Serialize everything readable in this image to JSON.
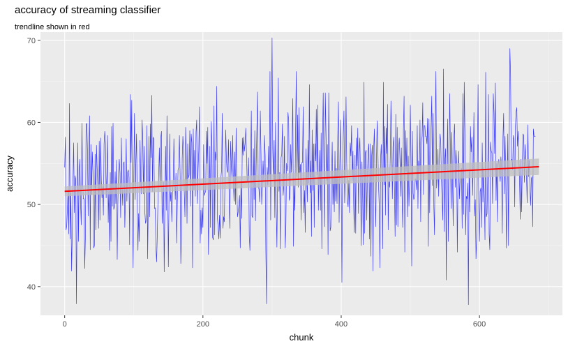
{
  "chart_data": {
    "type": "line",
    "title": "accuracy of streaming classifier",
    "subtitle": "trendline shown in red",
    "xlabel": "chunk",
    "ylabel": "accuracy",
    "xlim": [
      -35,
      720
    ],
    "ylim": [
      36.5,
      71
    ],
    "x_ticks": [
      0,
      200,
      400,
      600
    ],
    "y_ticks": [
      40,
      50,
      60,
      70
    ],
    "grid": true,
    "background": "#ebebeb",
    "series": [
      {
        "style": "line",
        "color": "#3b3bf0",
        "x_start": 0,
        "x_step": 1,
        "values": [
          54.5,
          58.2,
          46.9,
          47.4,
          49.6,
          51.8,
          46.4,
          62.3,
          45.8,
          51.4,
          41.9,
          46.2,
          52.8,
          57.5,
          49.0,
          53.5,
          53.0,
          37.9,
          49.6,
          57.5,
          45.5,
          54.0,
          55.5,
          50.1,
          47.5,
          59.9,
          52.9,
          50.7,
          50.7,
          42.2,
          46.0,
          59.7,
          59.9,
          56.6,
          48.6,
          56.9,
          60.8,
          44.5,
          57.3,
          51.2,
          56.4,
          54.0,
          44.7,
          45.0,
          56.1,
          46.9,
          57.2,
          54.5,
          52.0,
          47.1,
          57.7,
          48.1,
          58.1,
          53.0,
          50.8,
          52.2,
          48.7,
          57.4,
          58.9,
          57.5,
          50.8,
          53.5,
          58.4,
          47.8,
          52.0,
          44.4,
          53.9,
          45.5,
          59.5,
          49.8,
          59.9,
          49.4,
          49.7,
          54.0,
          50.1,
          55.4,
          43.3,
          50.3,
          54.0,
          55.5,
          53.8,
          48.4,
          58.1,
          52.2,
          49.9,
          55.0,
          55.2,
          47.2,
          51.1,
          58.0,
          50.4,
          53.9,
          54.2,
          53.3,
          45.1,
          63.4,
          55.1,
          62.7,
          49.5,
          42.3,
          53.5,
          61.1,
          50.6,
          55.2,
          58.6,
          50.2,
          44.4,
          48.9,
          45.5,
          57.8,
          52.8,
          51.3,
          60.3,
          58.0,
          51.3,
          57.1,
          49.0,
          47.7,
          48.1,
          59.6,
          43.4,
          50.3,
          58.3,
          48.5,
          59.8,
          55.7,
          63.3,
          51.6,
          58.2,
          58.0,
          49.5,
          49.6,
          44.8,
          43.0,
          46.3,
          50.6,
          53.6,
          56.9,
          52.1,
          58.1,
          58.9,
          47.7,
          50.1,
          52.7,
          41.8,
          50.3,
          57.1,
          49.3,
          60.8,
          53.2,
          42.4,
          51.2,
          58.6,
          50.4,
          51.5,
          47.9,
          51.5,
          52.6,
          58.0,
          53.6,
          50.6,
          53.8,
          45.3,
          50.2,
          54.2,
          54.5,
          58.4,
          53.6,
          42.8,
          46.2,
          55.6,
          58.3,
          56.5,
          51.6,
          48.5,
          59.4,
          55.9,
          47.7,
          57.4,
          53.2,
          53.6,
          59.0,
          49.8,
          58.6,
          57.5,
          42.3,
          59.2,
          51.8,
          56.6,
          51.0,
          58.8,
          60.3,
          50.1,
          54.3,
          56.6,
          61.9,
          45.3,
          49.3,
          46.4,
          49.6,
          47.2,
          57.3,
          51.1,
          51.4,
          51.6,
          58.9,
          55.0,
          59.4,
          43.9,
          49.3,
          57.1,
          47.2,
          60.1,
          57.1,
          46.0,
          45.7,
          62.0,
          46.3,
          56.4,
          55.4,
          64.4,
          48.3,
          47.2,
          45.8,
          48.7,
          45.9,
          53.3,
          54.2,
          61.1,
          47.1,
          48.5,
          47.9,
          54.0,
          59.1,
          55.4,
          53.9,
          54.2,
          57.9,
          50.4,
          47.1,
          57.7,
          55.0,
          53.3,
          58.4,
          52.9,
          50.4,
          56.4,
          50.0,
          59.3,
          52.5,
          48.5,
          49.1,
          50.0,
          51.1,
          44.7,
          52.5,
          48.3,
          58.1,
          56.0,
          58.2,
          56.5,
          57.4,
          59.3,
          56.3,
          52.8,
          53.2,
          55.7,
          46.2,
          44.4,
          55.1,
          61.4,
          48.6,
          48.4,
          56.8,
          50.6,
          59.0,
          48.0,
          54.8,
          59.0,
          63.7,
          52.1,
          51.9,
          50.3,
          61.4,
          56.2,
          50.0,
          52.2,
          55.3,
          52.7,
          58.4,
          56.0,
          44.4,
          37.9,
          54.5,
          52.4,
          57.1,
          53.0,
          66.2,
          48.1,
          59.5,
          70.3,
          56.7,
          53.1,
          57.8,
          48.4,
          60.0,
          49.8,
          44.8,
          53.1,
          65.4,
          51.6,
          53.9,
          44.6,
          55.7,
          56.1,
          59.8,
          51.1,
          52.3,
          58.3,
          44.7,
          47.5,
          55.0,
          54.1,
          61.2,
          60.3,
          50.5,
          50.9,
          57.3,
          53.9,
          57.8,
          62.9,
          44.9,
          52.3,
          49.3,
          58.7,
          66.2,
          53.4,
          60.9,
          52.1,
          61.8,
          53.8,
          54.9,
          48.1,
          55.1,
          55.1,
          61.9,
          49.0,
          51.7,
          46.6,
          56.8,
          53.6,
          50.3,
          57.8,
          52.6,
          64.6,
          51.4,
          55.3,
          46.1,
          59.1,
          51.7,
          57.4,
          47.2,
          57.4,
          55.3,
          61.6,
          53.6,
          62.1,
          49.3,
          53.5,
          56.6,
          49.3,
          58.7,
          44.6,
          57.9,
          63.6,
          54.2,
          47.3,
          63.6,
          58.9,
          52.9,
          57.3,
          43.9,
          63.6,
          55.0,
          46.8,
          47.2,
          52.6,
          57.6,
          50.0,
          53.5,
          49.1,
          56.5,
          50.4,
          54.4,
          50.1,
          58.1,
          62.5,
          47.8,
          54.9,
          60.3,
          53.5,
          40.5,
          54.2,
          58.7,
          61.4,
          50.2,
          53.8,
          63.1,
          55.2,
          50.4,
          49.7,
          52.9,
          49.0,
          57.5,
          55.9,
          59.6,
          52.9,
          56.5,
          50.1,
          46.6,
          56.0,
          46.5,
          58.1,
          54.7,
          59.3,
          48.9,
          56.2,
          58.1,
          52.9,
          45.0,
          55.2,
          51.1,
          45.1,
          64.9,
          46.5,
          56.3,
          56.6,
          48.1,
          53.6,
          56.5,
          57.4,
          45.8,
          57.4,
          43.7,
          55.8,
          57.2,
          41.9,
          56.8,
          59.2,
          51.9,
          47.3,
          55.2,
          60.2,
          56.9,
          52.4,
          49.9,
          42.3,
          55.6,
          57.3,
          52.4,
          44.6,
          64.9,
          52.4,
          59.5,
          48.7,
          59.3,
          56.2,
          62.2,
          46.9,
          52.8,
          52.1,
          55.9,
          62.6,
          57.7,
          50.7,
          57.1,
          58.2,
          52.2,
          46.1,
          61.0,
          47.5,
          59.4,
          47.3,
          56.6,
          58.1,
          55.5,
          51.0,
          56.9,
          51.3,
          47.2,
          59.0,
          63.2,
          44.2,
          59.0,
          54.0,
          58.1,
          48.5,
          55.9,
          49.8,
          53.2,
          62.1,
          54.8,
          42.5,
          58.9,
          51.4,
          50.6,
          50.9,
          53.1,
          53.1,
          51.8,
          59.6,
          49.5,
          55.3,
          54.0,
          60.3,
          47.9,
          57.7,
          58.3,
          62.4,
          51.2,
          59.6,
          59.6,
          58.3,
          58.3,
          57.4,
          60.5,
          44.9,
          60.4,
          49.0,
          56.3,
          59.6,
          63.2,
          52.3,
          61.1,
          49.8,
          46.3,
          58.6,
          66.2,
          52.0,
          53.5,
          56.7,
          51.0,
          56.1,
          58.6,
          57.7,
          53.1,
          50.5,
          48.1,
          66.5,
          46.7,
          55.5,
          56.8,
          40.8,
          53.9,
          60.4,
          45.5,
          56.0,
          63.5,
          56.4,
          49.5,
          58.8,
          53.0,
          47.4,
          58.1,
          59.8,
          52.1,
          56.6,
          55.1,
          44.2,
          53.7,
          56.5,
          50.7,
          52.8,
          54.1,
          54.4,
          47.1,
          63.5,
          48.8,
          64.9,
          58.9,
          46.3,
          51.0,
          50.7,
          52.6,
          37.8,
          54.0,
          49.1,
          59.5,
          56.4,
          58.2,
          51.1,
          55.1,
          61.2,
          48.6,
          50.6,
          43.4,
          45.9,
          54.9,
          64.6,
          49.6,
          45.5,
          51.6,
          52.0,
          47.2,
          57.5,
          50.3,
          54.5,
          50.9,
          45.7,
          66.1,
          48.5,
          48.9,
          53.7,
          63.4,
          46.4,
          44.5,
          57.6,
          56.5,
          56.3,
          50.1,
          63.5,
          61.2,
          56.2,
          64.8,
          50.5,
          55.0,
          47.9,
          55.0,
          55.5,
          53.8,
          52.8,
          55.8,
          54.4,
          46.5,
          58.1,
          61.1,
          51.3,
          58.3,
          54.0,
          44.7,
          51.4,
          58.6,
          45.0,
          56.9,
          69.0,
          65.9,
          55.4,
          55.5,
          54.2,
          58.4,
          57.8,
          49.7,
          59.5,
          61.3,
          61.8,
          57.1,
          58.9,
          55.6,
          52.8,
          48.2,
          55.5,
          49.1,
          55.0,
          58.6,
          58.4,
          52.7,
          57.3,
          55.6,
          53.6,
          50.2,
          59.7,
          53.4,
          55.4,
          52.0,
          49.9,
          53.1,
          53.4,
          47.3,
          59.2,
          58.3,
          58.3,
          58.3
        ]
      },
      {
        "style": "trend",
        "color": "#ff0000",
        "band_color": "#bdbdbd",
        "x": [
          0,
          686
        ],
        "values": [
          51.6,
          54.6
        ],
        "band_low": [
          51.0,
          53.6
        ],
        "band_high": [
          52.2,
          55.6
        ]
      }
    ]
  }
}
